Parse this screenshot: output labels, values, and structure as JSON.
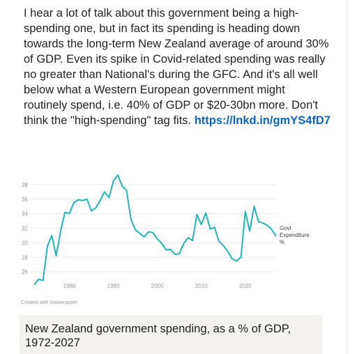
{
  "post": {
    "body": "I hear a lot of talk about this government being a high-spending one, but in fact its spending is heading down towards the long-term New Zealand average of around 30% of GDP. Even its spike in Covid-related spending was really no greater than National's during the GFC. And it's all well below what a Western European government might routinely spend, i.e. 40% of GDP or $20-30bn more. Don't think the \"high-spending\" tag fits.",
    "link": "https://lnkd.in/gmYS4fD7"
  },
  "chart_credit": "Created with Datawrapper",
  "caption": {
    "title": "New Zealand government spending, as a % of GDP, 1972-2027"
  },
  "chart_data": {
    "type": "line",
    "title": "",
    "xlabel": "",
    "ylabel": "",
    "x_ticks": [
      1980,
      1990,
      2000,
      2010,
      2020
    ],
    "y_ticks": [
      26,
      28,
      30,
      32,
      34,
      36,
      38
    ],
    "xlim": [
      1972,
      2027
    ],
    "ylim": [
      24,
      40
    ],
    "color": "#1fb5b8",
    "grid": true,
    "series": [
      {
        "name": "Govt Expenditure %",
        "x": [
          1972,
          1973,
          1974,
          1975,
          1976,
          1977,
          1978,
          1979,
          1980,
          1981,
          1982,
          1983,
          1984,
          1985,
          1986,
          1987,
          1988,
          1989,
          1990,
          1991,
          1992,
          1993,
          1994,
          1995,
          1996,
          1997,
          1998,
          1999,
          2000,
          2001,
          2002,
          2003,
          2004,
          2005,
          2006,
          2007,
          2008,
          2009,
          2010,
          2011,
          2012,
          2013,
          2014,
          2015,
          2016,
          2017,
          2018,
          2019,
          2020,
          2021,
          2022,
          2023,
          2024,
          2025,
          2026,
          2027
        ],
        "values": [
          24.2,
          25.0,
          24.8,
          29.5,
          31.0,
          28.2,
          31.6,
          34.2,
          34.0,
          35.5,
          35.9,
          35.8,
          36.0,
          34.4,
          34.8,
          35.8,
          37.0,
          36.2,
          38.5,
          39.3,
          37.8,
          37.2,
          33.2,
          31.8,
          31.3,
          30.8,
          31.5,
          31.4,
          30.5,
          29.9,
          29.0,
          29.1,
          28.4,
          28.5,
          29.9,
          30.7,
          30.3,
          33.9,
          32.5,
          34.1,
          31.9,
          32.1,
          30.2,
          29.6,
          28.8,
          27.8,
          27.5,
          28.0,
          34.3,
          31.6,
          35.0,
          32.9,
          32.7,
          32.4,
          31.8,
          30.9
        ]
      }
    ]
  }
}
